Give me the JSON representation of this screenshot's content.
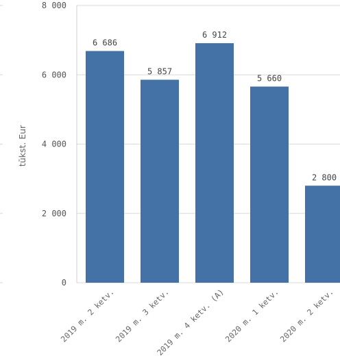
{
  "chart_data": {
    "type": "bar",
    "categories": [
      "2019 m. 2 ketv.",
      "2019 m. 3 ketv.",
      "2019 m. 4 ketv. (A)",
      "2020 m. 1 ketv.",
      "2020 m. 2 ketv."
    ],
    "values": [
      6686,
      5857,
      6912,
      5660,
      2800
    ],
    "value_labels": [
      "6 686",
      "5 857",
      "6 912",
      "5 660",
      "2 800"
    ],
    "ylabel": "tūkst. Eur",
    "ylim": [
      0,
      8000
    ],
    "yticks": [
      0,
      2000,
      4000,
      6000,
      8000
    ],
    "ytick_labels": [
      "0",
      "2 000",
      "4 000",
      "6 000",
      "8 000"
    ],
    "grid": true,
    "bar_color": "#4472a6"
  }
}
